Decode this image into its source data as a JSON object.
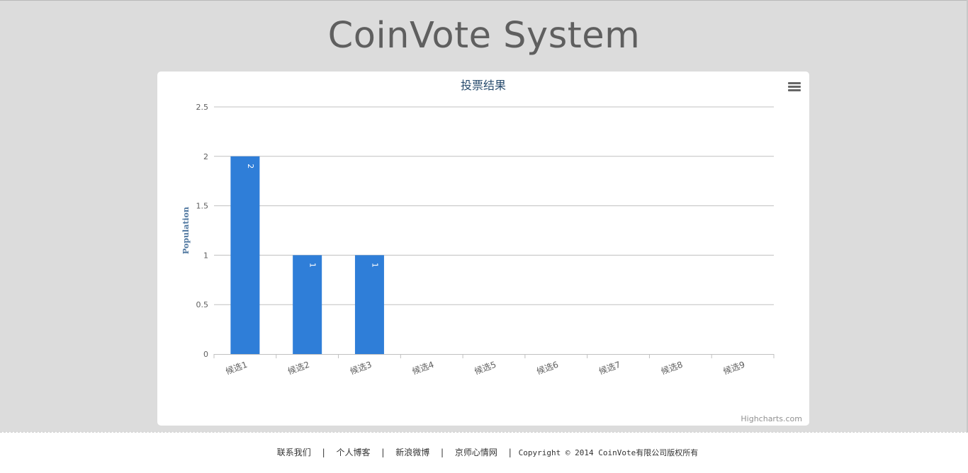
{
  "site": {
    "title": "CoinVote System"
  },
  "chart": {
    "menu_icon": "hamburger-menu-icon",
    "credits": "Highcharts.com"
  },
  "chart_data": {
    "type": "bar",
    "title": "投票结果",
    "xlabel": "",
    "ylabel": "Population",
    "categories": [
      "候选1",
      "候选2",
      "候选3",
      "候选4",
      "候选5",
      "候选6",
      "候选7",
      "候选8",
      "候选9"
    ],
    "values": [
      2,
      1,
      1,
      0,
      0,
      0,
      0,
      0,
      0
    ],
    "data_labels": [
      "2",
      "1",
      "1",
      "",
      "",
      "",
      "",
      "",
      ""
    ],
    "yticks": [
      "0",
      "0.5",
      "1",
      "1.5",
      "2",
      "2.5"
    ],
    "ylim": [
      0,
      2.5
    ],
    "grid": true,
    "legend": "none",
    "colors": {
      "bar": "#2f7ed8",
      "title": "#274b6d",
      "ylabel": "#4d759e",
      "tick": "#606060",
      "grid": "#c0c0c0"
    }
  },
  "footer": {
    "links": [
      "联系我们",
      "个人博客",
      "新浪微博",
      "京师心情网"
    ],
    "separator": "|",
    "copyright": "Copyright © 2014  CoinVote有限公司版权所有"
  }
}
